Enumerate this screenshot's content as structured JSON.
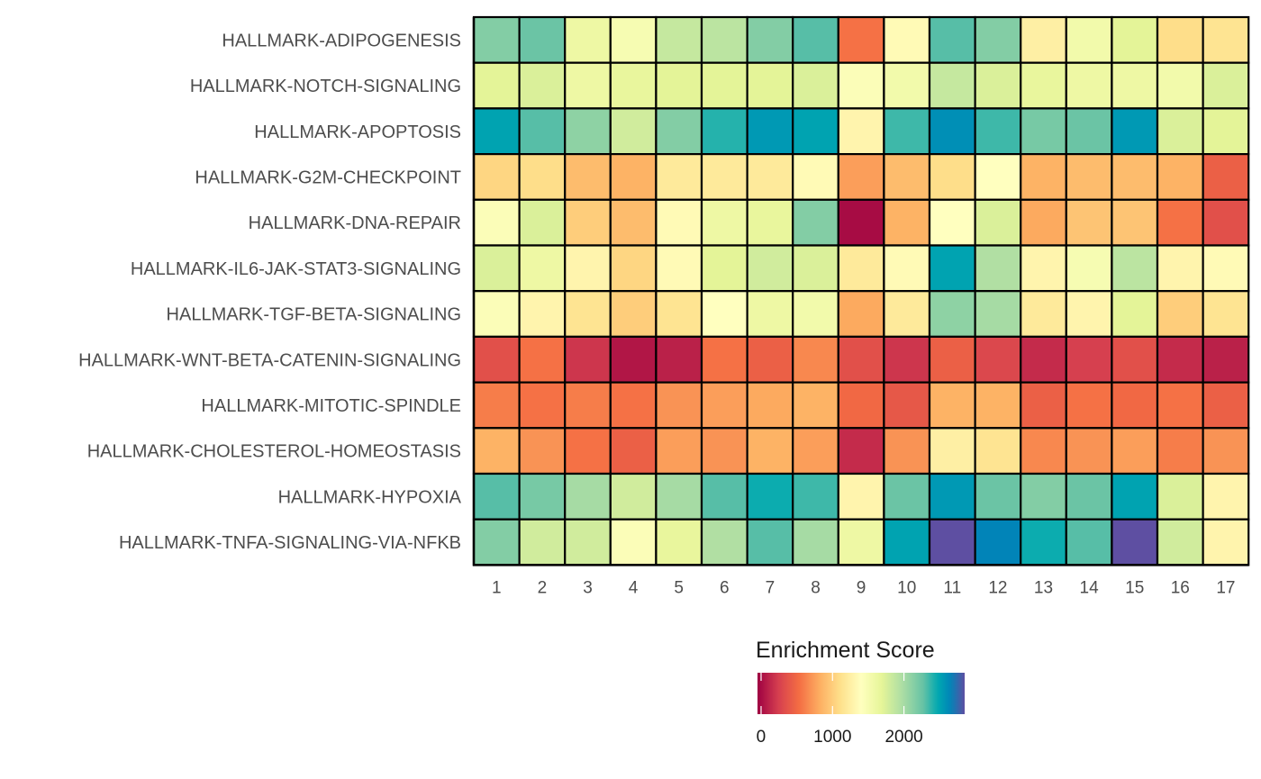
{
  "chart_data": {
    "type": "heatmap",
    "columns": [
      "1",
      "2",
      "3",
      "4",
      "5",
      "6",
      "7",
      "8",
      "9",
      "10",
      "11",
      "12",
      "13",
      "14",
      "15",
      "16",
      "17"
    ],
    "rows": [
      "HALLMARK-ADIPOGENESIS",
      "HALLMARK-NOTCH-SIGNALING",
      "HALLMARK-APOPTOSIS",
      "HALLMARK-G2M-CHECKPOINT",
      "HALLMARK-DNA-REPAIR",
      "HALLMARK-IL6-JAK-STAT3-SIGNALING",
      "HALLMARK-TGF-BETA-SIGNALING",
      "HALLMARK-WNT-BETA-CATENIN-SIGNALING",
      "HALLMARK-MITOTIC-SPINDLE",
      "HALLMARK-CHOLESTEROL-HOMEOSTASIS",
      "HALLMARK-HYPOXIA",
      "HALLMARK-TNFA-SIGNALING-VIA-NFKB"
    ],
    "values": [
      [
        2150,
        2250,
        1600,
        1500,
        1850,
        1900,
        2150,
        2300,
        550,
        1350,
        2300,
        2150,
        1250,
        1550,
        1700,
        1100,
        1150
      ],
      [
        1700,
        1750,
        1600,
        1650,
        1700,
        1700,
        1700,
        1750,
        1450,
        1550,
        1850,
        1750,
        1650,
        1600,
        1600,
        1550,
        1750
      ],
      [
        2500,
        2300,
        2100,
        1800,
        2150,
        2400,
        2550,
        2500,
        1300,
        2350,
        2600,
        2350,
        2200,
        2250,
        2550,
        1750,
        1700
      ],
      [
        1050,
        1100,
        900,
        850,
        1200,
        1200,
        1200,
        1350,
        750,
        900,
        1100,
        1400,
        850,
        900,
        900,
        850,
        450
      ],
      [
        1450,
        1750,
        1000,
        900,
        1350,
        1600,
        1650,
        2150,
        0,
        850,
        1400,
        1750,
        800,
        950,
        950,
        550,
        350
      ],
      [
        1750,
        1600,
        1300,
        1050,
        1350,
        1700,
        1800,
        1750,
        1200,
        1350,
        2500,
        1950,
        1300,
        1500,
        1900,
        1300,
        1350
      ],
      [
        1450,
        1300,
        1150,
        1000,
        1150,
        1400,
        1600,
        1550,
        800,
        1200,
        2100,
        2000,
        1200,
        1300,
        1700,
        1000,
        1150
      ],
      [
        350,
        550,
        200,
        50,
        100,
        550,
        450,
        650,
        350,
        200,
        450,
        300,
        150,
        250,
        350,
        150,
        100
      ],
      [
        600,
        550,
        600,
        550,
        700,
        750,
        800,
        850,
        500,
        400,
        850,
        850,
        450,
        550,
        500,
        550,
        450
      ],
      [
        850,
        700,
        550,
        450,
        750,
        700,
        850,
        750,
        150,
        700,
        1250,
        1150,
        650,
        700,
        750,
        600,
        700
      ],
      [
        2300,
        2200,
        2000,
        1800,
        2000,
        2300,
        2450,
        2350,
        1300,
        2250,
        2550,
        2250,
        2150,
        2250,
        2500,
        1750,
        1300
      ],
      [
        2150,
        1800,
        1800,
        1450,
        1650,
        1950,
        2300,
        2000,
        1600,
        2500,
        2850,
        2650,
        2450,
        2300,
        2850,
        1800,
        1300
      ]
    ],
    "legend": {
      "title": "Enrichment Score",
      "ticks": [
        0,
        1000,
        2000
      ],
      "tick_labels": [
        "0",
        "1000",
        "2000"
      ],
      "range": [
        -50,
        2850
      ],
      "position": "bottom",
      "palette": "Spectral",
      "colors": [
        "#9E0142",
        "#D53E4F",
        "#F46D43",
        "#FDAE61",
        "#FEE08B",
        "#FFFFBF",
        "#E6F598",
        "#ABDDA4",
        "#66C2A5",
        "#00A9B0",
        "#0085B8",
        "#5E4FA2"
      ],
      "color_stops": [
        0,
        0.1,
        0.2,
        0.3,
        0.4,
        0.5,
        0.6,
        0.7,
        0.8,
        0.87,
        0.93,
        1
      ]
    },
    "cell_border_color": "#000000"
  }
}
